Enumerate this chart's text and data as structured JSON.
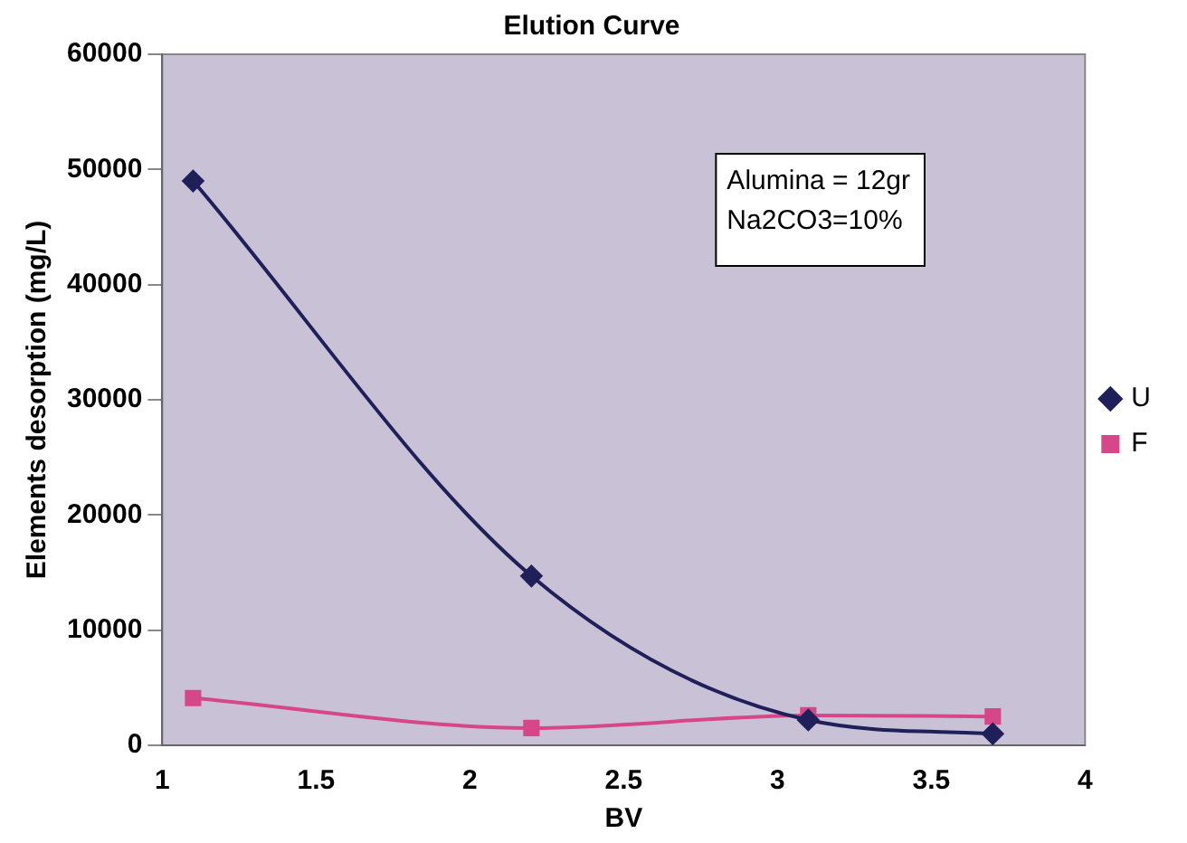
{
  "chart_data": {
    "type": "line",
    "title": "Elution Curve",
    "xlabel": "BV",
    "ylabel": "Elements desorption (mg/L)",
    "x": [
      1.1,
      2.2,
      3.1,
      3.7
    ],
    "series": [
      {
        "name": "U",
        "color": "#1f1f5a",
        "marker": "diamond",
        "values": [
          49000,
          14700,
          2200,
          1000
        ]
      },
      {
        "name": "F",
        "color": "#d6478a",
        "marker": "square",
        "values": [
          4100,
          1500,
          2600,
          2500
        ]
      }
    ],
    "xlim": [
      1,
      4
    ],
    "xticks": [
      1,
      1.5,
      2,
      2.5,
      3,
      3.5,
      4
    ],
    "ylim": [
      0,
      60000
    ],
    "yticks": [
      0,
      10000,
      20000,
      30000,
      40000,
      50000,
      60000
    ],
    "grid": false,
    "legend": "right",
    "annotations": [
      "Alumina = 12gr",
      "Na2CO3=10%"
    ]
  }
}
